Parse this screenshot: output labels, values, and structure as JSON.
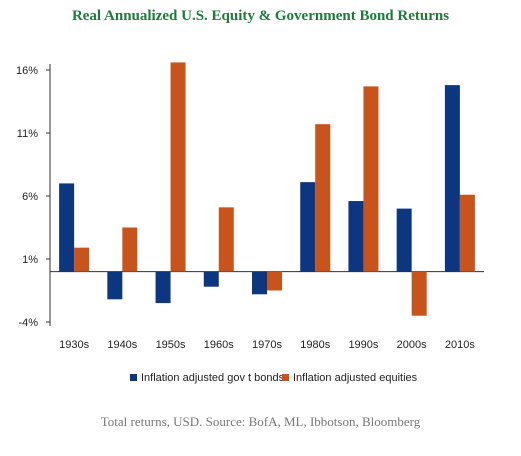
{
  "colors": {
    "title": "#1e7a3c",
    "bonds": "#0c3680",
    "equities": "#c8541c",
    "axis": "#333333"
  },
  "chart_data": {
    "type": "bar",
    "title": "Real Annualized U.S. Equity & Government Bond Returns",
    "categories": [
      "1930s",
      "1940s",
      "1950s",
      "1960s",
      "1970s",
      "1980s",
      "1990s",
      "2000s",
      "2010s"
    ],
    "series": [
      {
        "name": "Inflation adjusted gov t bonds",
        "values": [
          7.0,
          -2.2,
          -2.5,
          -1.2,
          -1.8,
          7.1,
          5.6,
          5.0,
          14.8
        ]
      },
      {
        "name": "Inflation adjusted equities",
        "values": [
          1.9,
          3.5,
          16.6,
          5.1,
          -1.5,
          11.7,
          14.7,
          -3.5,
          6.1
        ]
      }
    ],
    "yticks": [
      "16%",
      "11%",
      "6%",
      "1%",
      "-4%"
    ],
    "ytick_values": [
      16,
      11,
      6,
      1,
      -4
    ],
    "ylim": [
      -4,
      16
    ],
    "baseline": 0,
    "xlabel": "",
    "ylabel": "",
    "legend_position": "bottom",
    "grid": false
  },
  "source_note": "Total returns, USD. Source: BofA, ML, Ibbotson, Bloomberg"
}
